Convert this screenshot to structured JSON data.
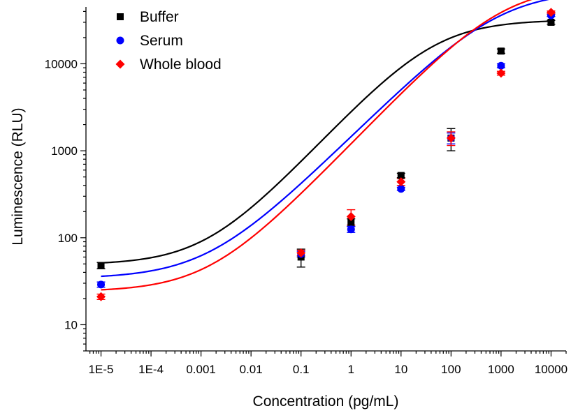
{
  "chart_data": {
    "type": "scatter",
    "title": "",
    "xlabel": "Concentration (pg/mL)",
    "ylabel": "Luminescence (RLU)",
    "xscale": "log",
    "yscale": "log",
    "xlim": [
      5e-06,
      20000
    ],
    "ylim": [
      5,
      45000
    ],
    "xticks": [
      {
        "value": 1e-05,
        "label": "1E-5"
      },
      {
        "value": 0.0001,
        "label": "1E-4"
      },
      {
        "value": 0.001,
        "label": "0.001"
      },
      {
        "value": 0.01,
        "label": "0.01"
      },
      {
        "value": 0.1,
        "label": "0.1"
      },
      {
        "value": 1,
        "label": "1"
      },
      {
        "value": 10,
        "label": "10"
      },
      {
        "value": 100,
        "label": "100"
      },
      {
        "value": 1000,
        "label": "1000"
      },
      {
        "value": 10000,
        "label": "10000"
      }
    ],
    "yticks": [
      {
        "value": 10,
        "label": "10"
      },
      {
        "value": 100,
        "label": "100"
      },
      {
        "value": 1000,
        "label": "1000"
      },
      {
        "value": 10000,
        "label": "10000"
      }
    ],
    "grid": false,
    "legend_position": "top-left",
    "series": [
      {
        "name": "Buffer",
        "color": "#000000",
        "marker": "square",
        "x": [
          1e-05,
          0.1,
          1,
          10,
          100,
          1000,
          10000
        ],
        "y": [
          48,
          60,
          150,
          520,
          1400,
          14000,
          30000
        ],
        "err": [
          4,
          14,
          15,
          30,
          400,
          800,
          1500
        ],
        "fit": {
          "bottom": 49,
          "top": 32000,
          "ec50": 45,
          "hill": 0.62
        }
      },
      {
        "name": "Serum",
        "color": "#0000ff",
        "marker": "circle",
        "x": [
          1e-05,
          0.1,
          1,
          10,
          100,
          1000,
          10000
        ],
        "y": [
          29,
          65,
          125,
          365,
          1400,
          9500,
          36000
        ],
        "err": [
          2,
          5,
          10,
          15,
          200,
          500,
          1000
        ],
        "fit": {
          "bottom": 34,
          "top": 70000,
          "ec50": 900,
          "hill": 0.57
        }
      },
      {
        "name": "Whole blood",
        "color": "#ff0000",
        "marker": "diamond",
        "x": [
          1e-05,
          0.1,
          1,
          10,
          100,
          1000,
          10000
        ],
        "y": [
          21,
          67,
          175,
          440,
          1400,
          7800,
          39000
        ],
        "err": [
          1.5,
          5,
          35,
          40,
          250,
          400,
          1500
        ],
        "fit": {
          "bottom": 24,
          "top": 80000,
          "ec50": 1100,
          "hill": 0.6
        }
      }
    ]
  }
}
